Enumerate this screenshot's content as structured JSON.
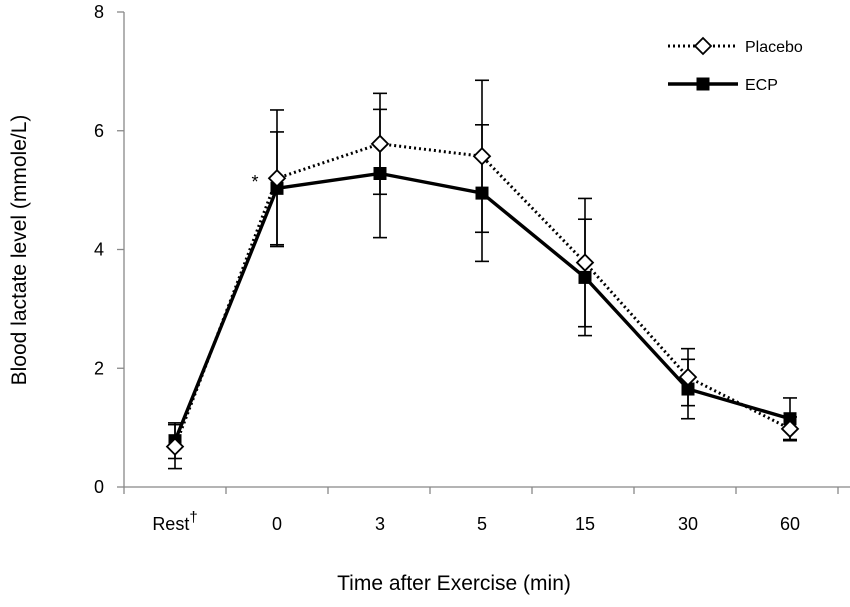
{
  "chart_data": {
    "type": "line",
    "title": "",
    "xlabel": "Time after Exercise (min)",
    "ylabel": "Blood lactate level (mmole/L)",
    "categories": [
      "Rest",
      "0",
      "3",
      "5",
      "15",
      "30",
      "60"
    ],
    "category_suffix": {
      "Rest": "†"
    },
    "ylim": [
      0,
      8
    ],
    "yticks": [
      "0",
      "2",
      "4",
      "6",
      "8"
    ],
    "legend_position": "top-right",
    "grid": false,
    "series": [
      {
        "name": "Placebo",
        "style": "dotted",
        "marker": "open-diamond",
        "color": "#000000",
        "values": [
          0.68,
          5.2,
          5.78,
          5.57,
          3.78,
          1.85,
          0.98
        ],
        "error": [
          0.37,
          1.15,
          0.85,
          1.28,
          1.08,
          0.48,
          0.2
        ]
      },
      {
        "name": "ECP",
        "style": "solid",
        "marker": "filled-square",
        "color": "#000000",
        "values": [
          0.78,
          5.03,
          5.28,
          4.95,
          3.53,
          1.65,
          1.15
        ],
        "error": [
          0.3,
          0.95,
          1.08,
          1.15,
          0.98,
          0.5,
          0.35
        ]
      }
    ],
    "annotations": [
      {
        "text": "*",
        "category": "0"
      }
    ]
  }
}
